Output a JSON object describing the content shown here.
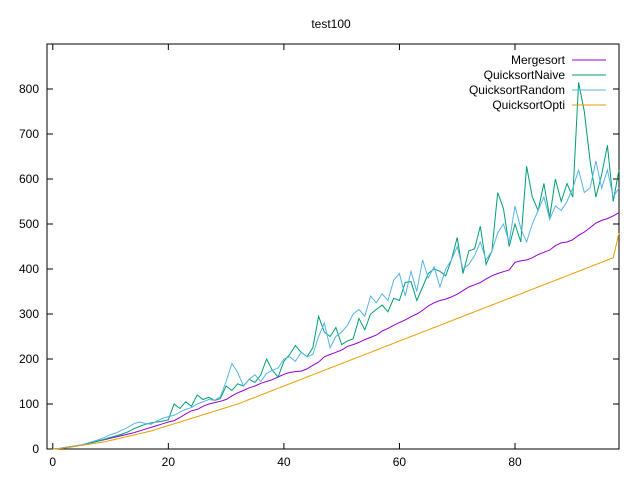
{
  "chart_data": {
    "type": "line",
    "title": "test100",
    "xlabel": "",
    "ylabel": "",
    "xlim": [
      -1,
      98
    ],
    "ylim": [
      0,
      900
    ],
    "xticks": [
      0,
      20,
      40,
      60,
      80
    ],
    "yticks": [
      0,
      100,
      200,
      300,
      400,
      500,
      600,
      700,
      800
    ],
    "grid": false,
    "legend_position": "top-right",
    "x": [
      0,
      1,
      2,
      3,
      4,
      5,
      6,
      7,
      8,
      9,
      10,
      11,
      12,
      13,
      14,
      15,
      16,
      17,
      18,
      19,
      20,
      21,
      22,
      23,
      24,
      25,
      26,
      27,
      28,
      29,
      30,
      31,
      32,
      33,
      34,
      35,
      36,
      37,
      38,
      39,
      40,
      41,
      42,
      43,
      44,
      45,
      46,
      47,
      48,
      49,
      50,
      51,
      52,
      53,
      54,
      55,
      56,
      57,
      58,
      59,
      60,
      61,
      62,
      63,
      64,
      65,
      66,
      67,
      68,
      69,
      70,
      71,
      72,
      73,
      74,
      75,
      76,
      77,
      78,
      79,
      80,
      81,
      82,
      83,
      84,
      85,
      86,
      87,
      88,
      89,
      90,
      91,
      92,
      93,
      94,
      95,
      96,
      97,
      98
    ],
    "series": [
      {
        "name": "Mergesort",
        "color": "#9400d3",
        "values": [
          0,
          1,
          3,
          5,
          7,
          9,
          12,
          15,
          18,
          21,
          24,
          27,
          30,
          33,
          36,
          40,
          44,
          48,
          52,
          56,
          60,
          63,
          70,
          78,
          85,
          88,
          95,
          100,
          103,
          106,
          110,
          118,
          125,
          130,
          136,
          140,
          146,
          150,
          154,
          160,
          166,
          170,
          172,
          173,
          178,
          186,
          193,
          205,
          210,
          215,
          220,
          228,
          232,
          237,
          243,
          248,
          253,
          262,
          268,
          275,
          281,
          287,
          294,
          300,
          308,
          318,
          325,
          330,
          333,
          338,
          344,
          352,
          360,
          365,
          370,
          378,
          385,
          390,
          394,
          398,
          415,
          418,
          420,
          425,
          432,
          437,
          442,
          452,
          458,
          460,
          465,
          475,
          482,
          492,
          502,
          508,
          512,
          518,
          525
        ]
      },
      {
        "name": "QuicksortNaive",
        "color": "#009e73",
        "values": [
          0,
          1,
          3,
          5,
          7,
          9,
          12,
          15,
          18,
          22,
          26,
          29,
          33,
          38,
          45,
          50,
          55,
          58,
          60,
          62,
          65,
          100,
          90,
          105,
          95,
          120,
          110,
          115,
          108,
          112,
          140,
          130,
          145,
          140,
          155,
          148,
          165,
          200,
          175,
          160,
          195,
          210,
          230,
          215,
          205,
          225,
          295,
          260,
          250,
          270,
          232,
          240,
          245,
          290,
          265,
          300,
          310,
          320,
          305,
          335,
          330,
          370,
          372,
          330,
          360,
          390,
          400,
          395,
          385,
          420,
          470,
          390,
          440,
          445,
          495,
          410,
          440,
          570,
          535,
          450,
          500,
          460,
          628,
          560,
          530,
          590,
          515,
          600,
          550,
          590,
          560,
          815,
          750,
          640,
          560,
          610,
          675,
          550,
          620
        ]
      },
      {
        "name": "QuicksortRandom",
        "color": "#56b4e9",
        "values": [
          0,
          1,
          3,
          5,
          7,
          9,
          13,
          17,
          21,
          26,
          32,
          36,
          42,
          48,
          56,
          60,
          57,
          55,
          62,
          68,
          72,
          75,
          82,
          88,
          92,
          100,
          105,
          110,
          108,
          116,
          150,
          190,
          170,
          140,
          155,
          165,
          150,
          168,
          175,
          180,
          200,
          205,
          195,
          215,
          205,
          210,
          250,
          280,
          225,
          250,
          260,
          275,
          300,
          310,
          295,
          340,
          325,
          345,
          330,
          375,
          390,
          340,
          395,
          350,
          420,
          380,
          405,
          360,
          400,
          420,
          450,
          400,
          410,
          430,
          460,
          420,
          440,
          480,
          500,
          460,
          540,
          490,
          460,
          500,
          530,
          560,
          510,
          540,
          530,
          550,
          580,
          620,
          570,
          580,
          640,
          580,
          620,
          560,
          580
        ]
      },
      {
        "name": "QuicksortOpti",
        "color": "#e69f00",
        "values": [
          0,
          1,
          2,
          4,
          6,
          8,
          10,
          12,
          14,
          16,
          19,
          22,
          25,
          28,
          31,
          34,
          37,
          40,
          44,
          48,
          52,
          56,
          60,
          64,
          68,
          72,
          76,
          80,
          84,
          88,
          92,
          96,
          100,
          105,
          110,
          115,
          120,
          125,
          130,
          135,
          140,
          145,
          150,
          155,
          160,
          165,
          170,
          175,
          180,
          185,
          190,
          195,
          200,
          205,
          210,
          215,
          220,
          225,
          230,
          235,
          240,
          245,
          250,
          255,
          260,
          265,
          270,
          275,
          280,
          285,
          290,
          295,
          300,
          305,
          310,
          315,
          320,
          325,
          330,
          335,
          340,
          345,
          350,
          355,
          360,
          365,
          370,
          375,
          380,
          385,
          390,
          395,
          400,
          405,
          410,
          415,
          420,
          425,
          480
        ]
      }
    ]
  }
}
